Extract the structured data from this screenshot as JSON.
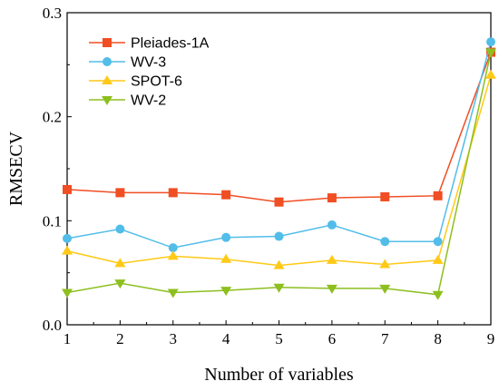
{
  "chart_data": {
    "type": "line",
    "xlabel": "Number of variables",
    "ylabel": "RMSECV",
    "x": [
      1,
      2,
      3,
      4,
      5,
      6,
      7,
      8,
      9
    ],
    "xlim": [
      1,
      9
    ],
    "ylim": [
      0,
      0.3
    ],
    "xticks": [
      "1",
      "2",
      "3",
      "4",
      "5",
      "6",
      "7",
      "8",
      "9"
    ],
    "yticks": [
      {
        "value": 0.0,
        "label": "0.0"
      },
      {
        "value": 0.1,
        "label": "0.1"
      },
      {
        "value": 0.2,
        "label": "0.2"
      },
      {
        "value": 0.3,
        "label": "0.3"
      }
    ],
    "grid": false,
    "legend": "top-left",
    "series": [
      {
        "name": "Pleiades-1A",
        "color": "#f04e23",
        "marker": "square",
        "values": [
          0.13,
          0.127,
          0.127,
          0.125,
          0.118,
          0.122,
          0.123,
          0.124,
          0.262
        ]
      },
      {
        "name": "WV-3",
        "color": "#52bde9",
        "marker": "circle",
        "values": [
          0.083,
          0.092,
          0.074,
          0.084,
          0.085,
          0.096,
          0.08,
          0.08,
          0.272
        ]
      },
      {
        "name": "SPOT-6",
        "color": "#ffc917",
        "marker": "triangle-up",
        "values": [
          0.071,
          0.059,
          0.066,
          0.063,
          0.057,
          0.062,
          0.058,
          0.062,
          0.24
        ]
      },
      {
        "name": "WV-2",
        "color": "#8dbf1e",
        "marker": "triangle-down",
        "values": [
          0.031,
          0.04,
          0.031,
          0.033,
          0.036,
          0.035,
          0.035,
          0.029,
          0.262
        ]
      }
    ]
  }
}
